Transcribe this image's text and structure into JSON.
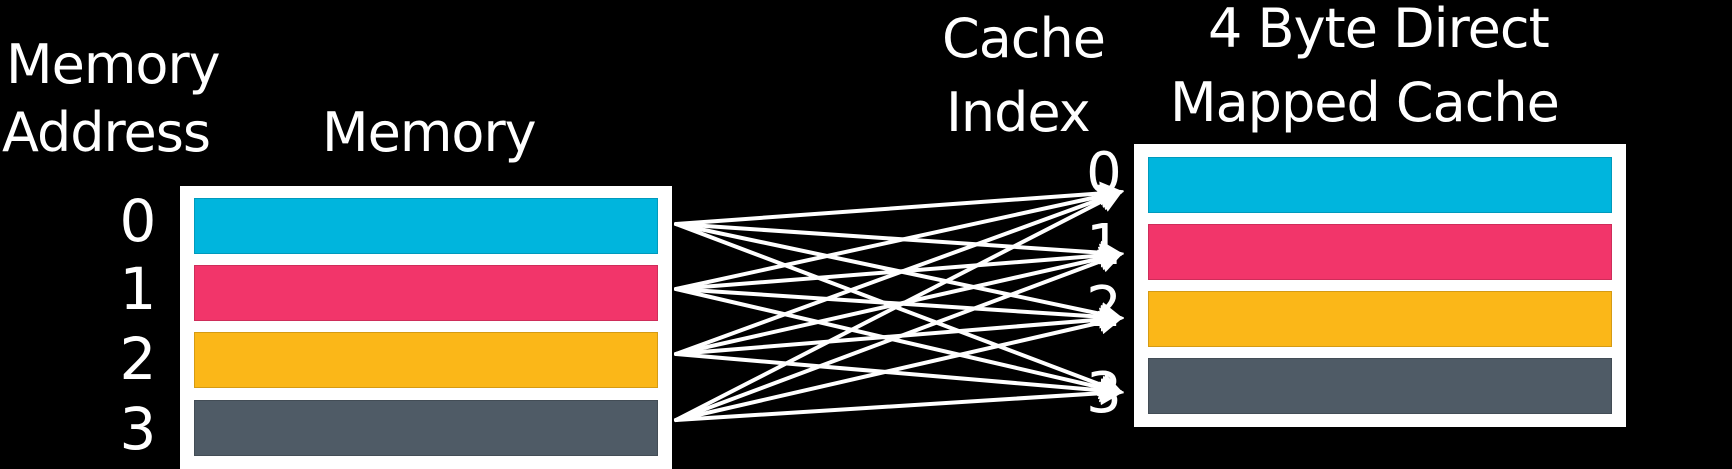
{
  "memory_address_label_line1": "Memory",
  "memory_address_label_line2": "Address",
  "memory_label": "Memory",
  "cache_index_label_line1": "Cache",
  "cache_index_label_line2": "Index",
  "cache_title_line1": "4 Byte Direct",
  "cache_title_line2": "Mapped Cache",
  "memory_addresses": [
    "0",
    "1",
    "2",
    "3"
  ],
  "cache_indices": [
    "0",
    "1",
    "2",
    "3"
  ],
  "colors": {
    "background": "#000000",
    "panel": "#ffffff",
    "block_0": "#00b5dd",
    "block_1": "#f2356a",
    "block_2": "#fbb718",
    "block_3": "#4f5b66",
    "arrow": "#ffffff"
  },
  "connections": "every memory address connects to every cache index"
}
